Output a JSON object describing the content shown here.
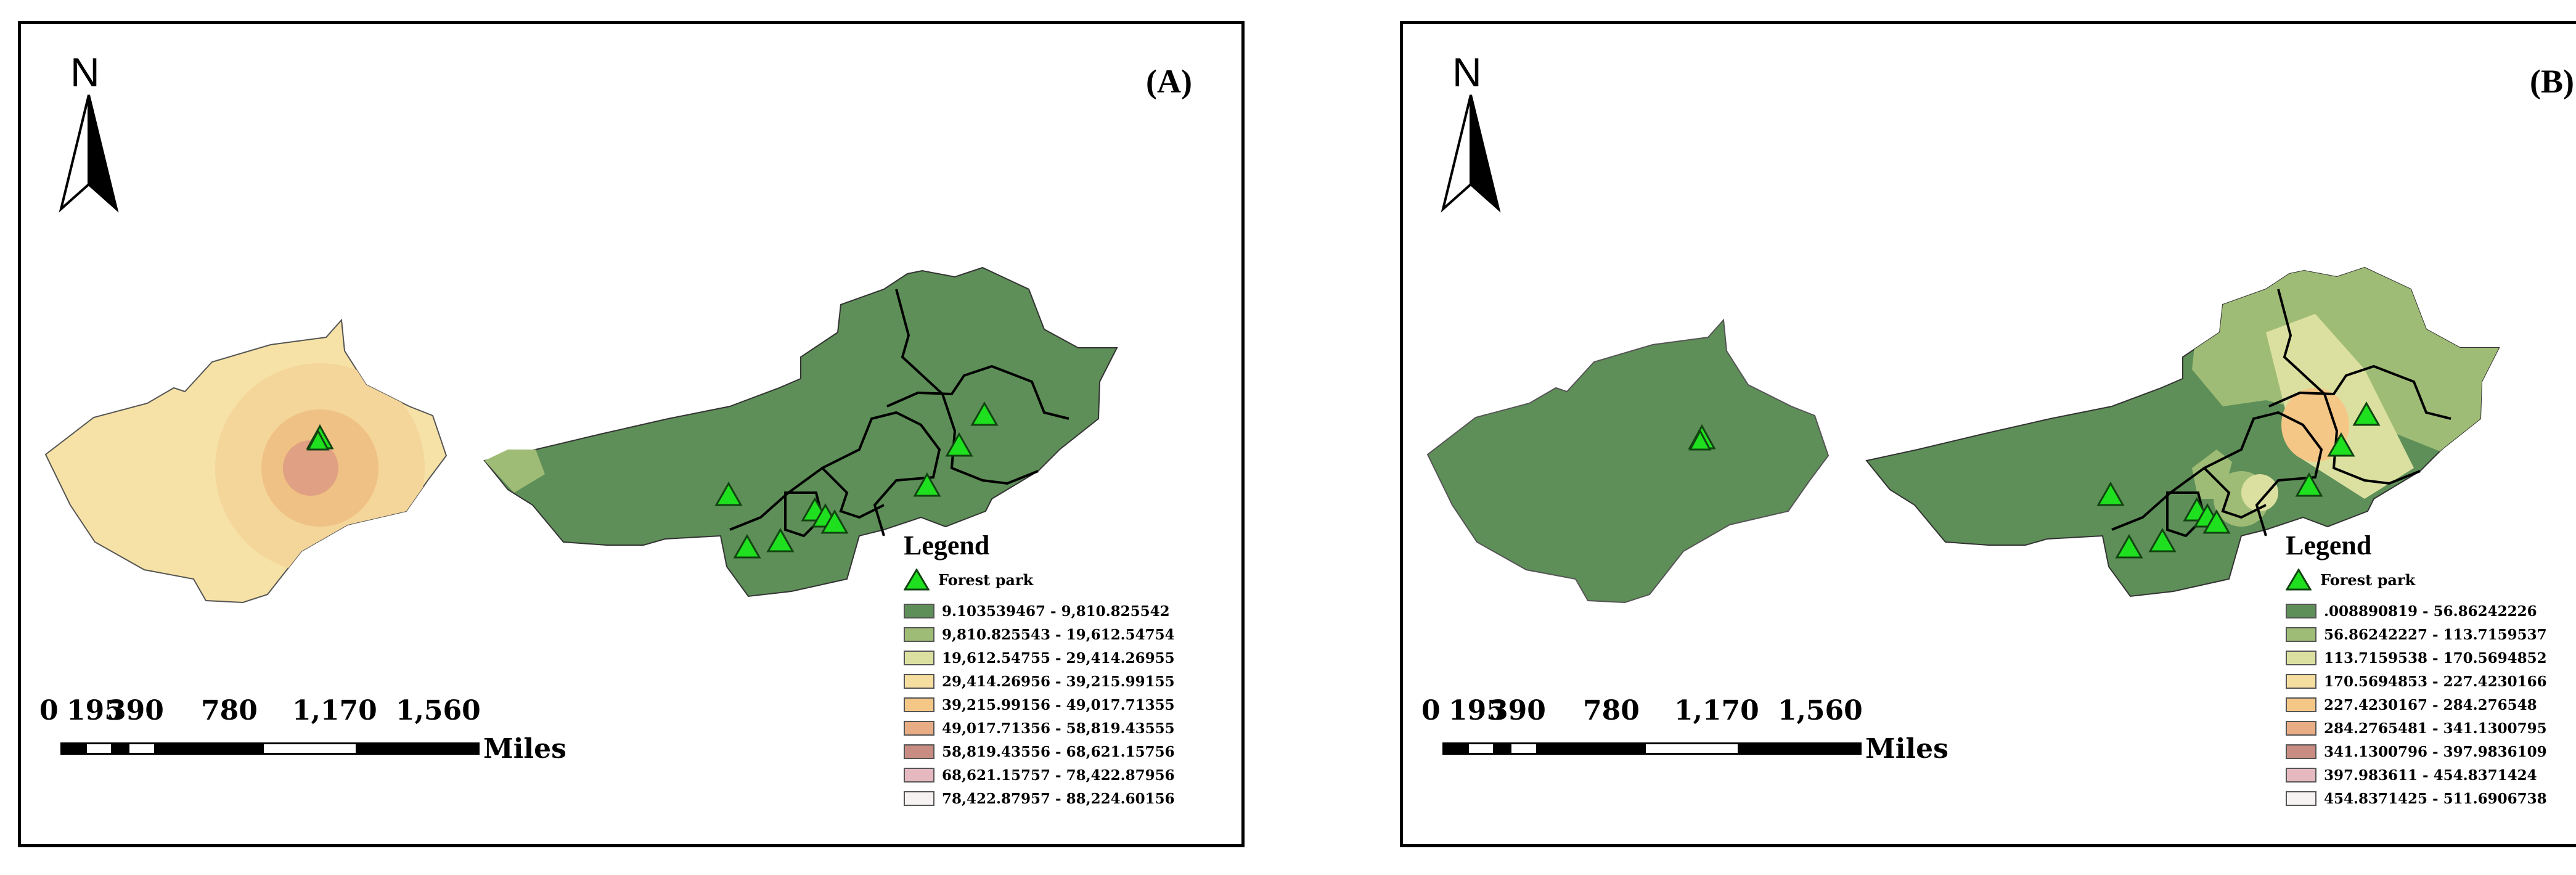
{
  "north_label": "N",
  "marker_label": "Forest park",
  "legend_title": "Legend",
  "scale": {
    "ticks": [
      "0",
      "195",
      "390",
      "780",
      "1,170",
      "1,560"
    ],
    "unit": "Miles"
  },
  "panels": [
    {
      "label": "(A)",
      "classes": [
        {
          "range": "9.103539467 - 9,810.825542",
          "color": "#5e8f58"
        },
        {
          "range": "9,810.825543 - 19,612.54754",
          "color": "#9fbc76"
        },
        {
          "range": "19,612.54755 - 29,414.26955",
          "color": "#dbe0a0"
        },
        {
          "range": "29,414.26956 - 39,215.99155",
          "color": "#f6dea1"
        },
        {
          "range": "39,215.99156 - 49,017.71355",
          "color": "#f4c787"
        },
        {
          "range": "49,017.71356 - 58,819.43555",
          "color": "#e8ad84"
        },
        {
          "range": "58,819.43556 - 68,621.15756",
          "color": "#c98c82"
        },
        {
          "range": "68,621.15757 - 78,422.87956",
          "color": "#e6b8bf"
        },
        {
          "range": "78,422.87957 - 88,224.60156",
          "color": "#f7f2f2"
        }
      ]
    },
    {
      "label": "(B)",
      "classes": [
        {
          "range": ".008890819 - 56.86242226",
          "color": "#5e8f58"
        },
        {
          "range": "56.86242227 - 113.7159537",
          "color": "#9fbc76"
        },
        {
          "range": "113.7159538 - 170.5694852",
          "color": "#dbe0a0"
        },
        {
          "range": "170.5694853 - 227.4230166",
          "color": "#f6dea1"
        },
        {
          "range": "227.4230167 - 284.276548",
          "color": "#f4c787"
        },
        {
          "range": "284.2765481 - 341.1300795",
          "color": "#e8ad84"
        },
        {
          "range": "341.1300796 - 397.9836109",
          "color": "#c98c82"
        },
        {
          "range": "397.983611 - 454.8371424",
          "color": "#e6b8bf"
        },
        {
          "range": "454.8371425 - 511.6906738",
          "color": "#f7f2f2"
        }
      ]
    }
  ]
}
